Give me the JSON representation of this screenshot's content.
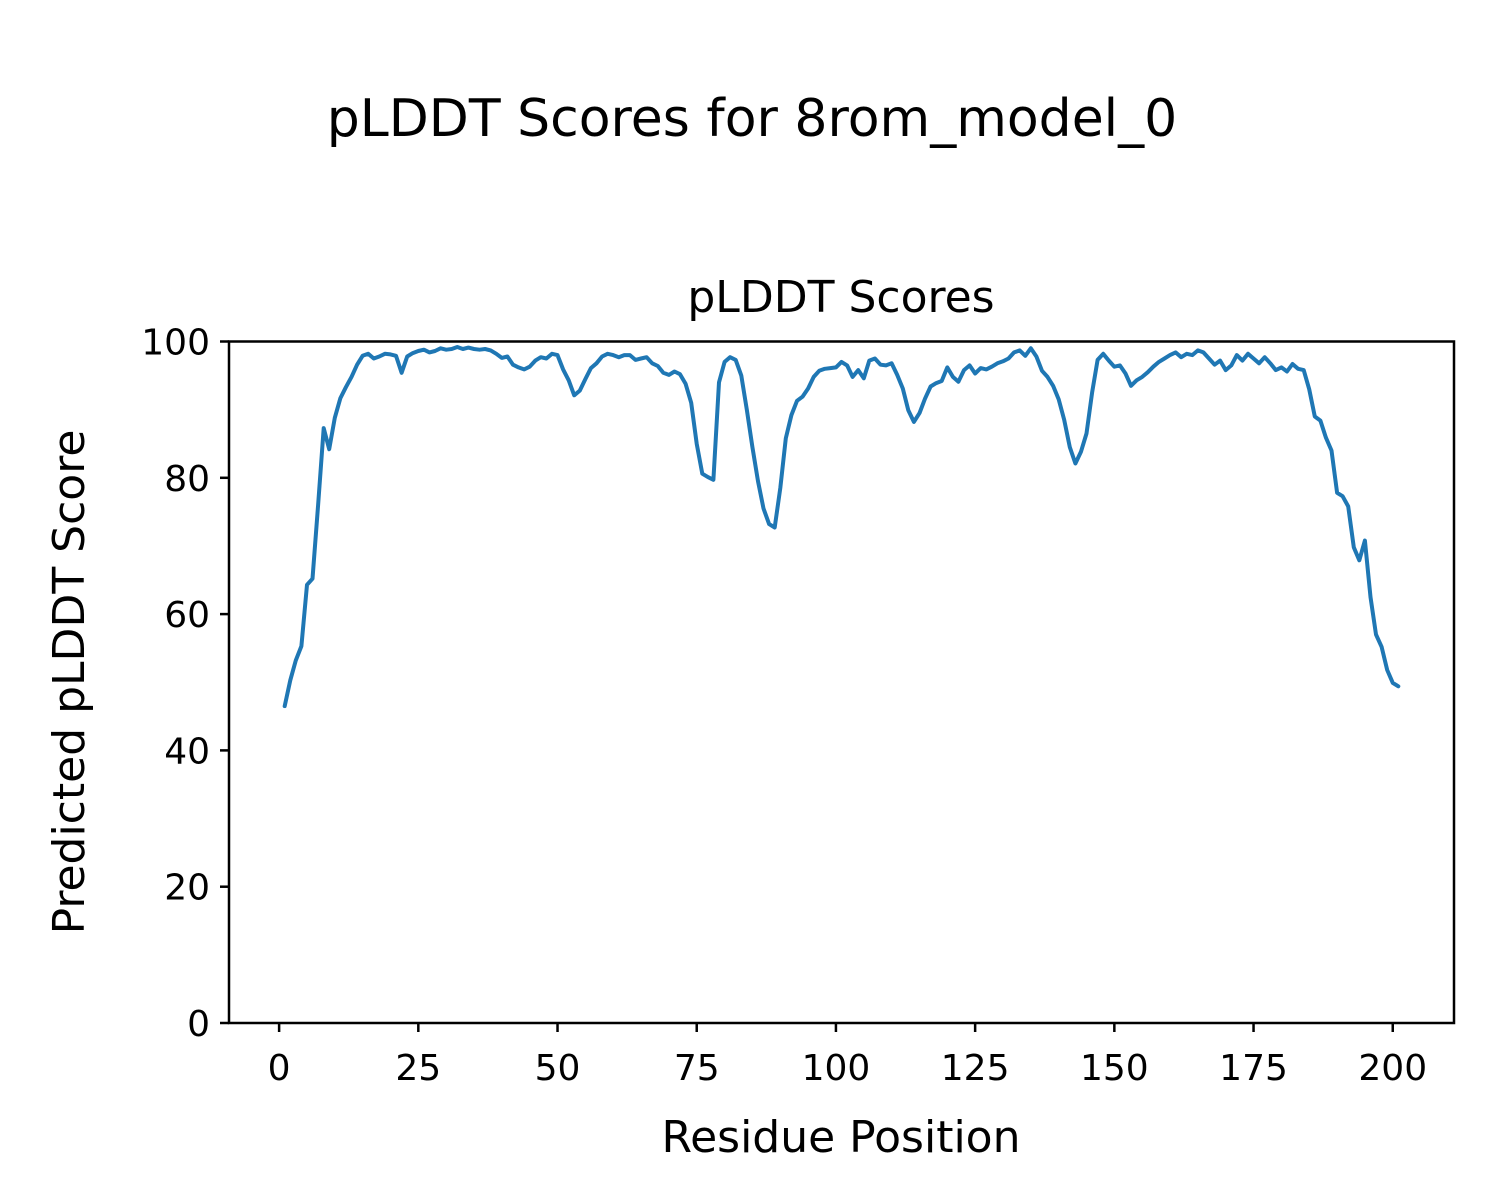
{
  "figure": {
    "suptitle": "pLDDT Scores for 8rom_model_0",
    "background_color": "#ffffff",
    "text_color": "#000000",
    "spine_color": "#000000"
  },
  "chart_data": {
    "type": "line",
    "title": "pLDDT Scores",
    "xlabel": "Residue Position",
    "ylabel": "Predicted pLDDT Score",
    "legend": null,
    "grid": false,
    "line_color": "#1f77b4",
    "line_width": 4,
    "xlim": [
      -9,
      211
    ],
    "ylim": [
      0,
      100
    ],
    "xticks": [
      0,
      25,
      50,
      75,
      100,
      125,
      150,
      175,
      200
    ],
    "yticks": [
      0,
      20,
      40,
      60,
      80,
      100
    ],
    "x_series_name": "residue_position",
    "residue_start": 1,
    "residue_end": 201,
    "values": [
      46.5,
      50.3,
      53.2,
      55.3,
      64.3,
      65.2,
      76.0,
      87.3,
      84.2,
      88.8,
      91.7,
      93.3,
      94.8,
      96.6,
      97.9,
      98.2,
      97.5,
      97.8,
      98.2,
      98.1,
      97.9,
      95.4,
      97.8,
      98.3,
      98.6,
      98.8,
      98.4,
      98.6,
      99.0,
      98.8,
      98.9,
      99.2,
      98.9,
      99.1,
      98.9,
      98.8,
      98.9,
      98.7,
      98.2,
      97.6,
      97.8,
      96.6,
      96.2,
      95.9,
      96.3,
      97.2,
      97.7,
      97.5,
      98.2,
      98.0,
      95.9,
      94.3,
      92.1,
      92.8,
      94.5,
      96.1,
      96.8,
      97.8,
      98.2,
      98.0,
      97.7,
      98.0,
      98.0,
      97.3,
      97.5,
      97.7,
      96.8,
      96.4,
      95.4,
      95.1,
      95.6,
      95.2,
      93.8,
      91.0,
      85.0,
      80.6,
      80.1,
      79.7,
      94.0,
      97.0,
      97.7,
      97.3,
      95.0,
      90.0,
      84.5,
      79.5,
      75.5,
      73.2,
      72.7,
      78.5,
      85.8,
      89.2,
      91.3,
      91.9,
      93.1,
      94.8,
      95.7,
      96.0,
      96.1,
      96.2,
      97.0,
      96.5,
      94.8,
      95.8,
      94.6,
      97.2,
      97.5,
      96.6,
      96.5,
      96.8,
      95.1,
      93.1,
      89.9,
      88.2,
      89.5,
      91.6,
      93.4,
      93.9,
      94.2,
      96.2,
      94.8,
      94.1,
      95.8,
      96.5,
      95.3,
      96.1,
      95.9,
      96.3,
      96.8,
      97.1,
      97.5,
      98.4,
      98.7,
      97.9,
      99.0,
      97.8,
      95.7,
      94.8,
      93.5,
      91.5,
      88.5,
      84.5,
      82.1,
      83.8,
      86.5,
      92.5,
      97.3,
      98.2,
      97.2,
      96.3,
      96.5,
      95.3,
      93.5,
      94.3,
      94.8,
      95.5,
      96.3,
      97.0,
      97.5,
      98.0,
      98.4,
      97.7,
      98.2,
      98.0,
      98.7,
      98.4,
      97.5,
      96.6,
      97.2,
      95.8,
      96.5,
      98.0,
      97.2,
      98.2,
      97.5,
      96.8,
      97.7,
      96.8,
      95.8,
      96.2,
      95.6,
      96.7,
      96.0,
      95.8,
      93.0,
      89.0,
      88.4,
      85.9,
      84.0,
      77.8,
      77.3,
      75.8,
      69.8,
      67.9,
      70.8,
      62.5,
      57.0,
      55.2,
      51.8,
      49.9,
      49.4
    ]
  }
}
